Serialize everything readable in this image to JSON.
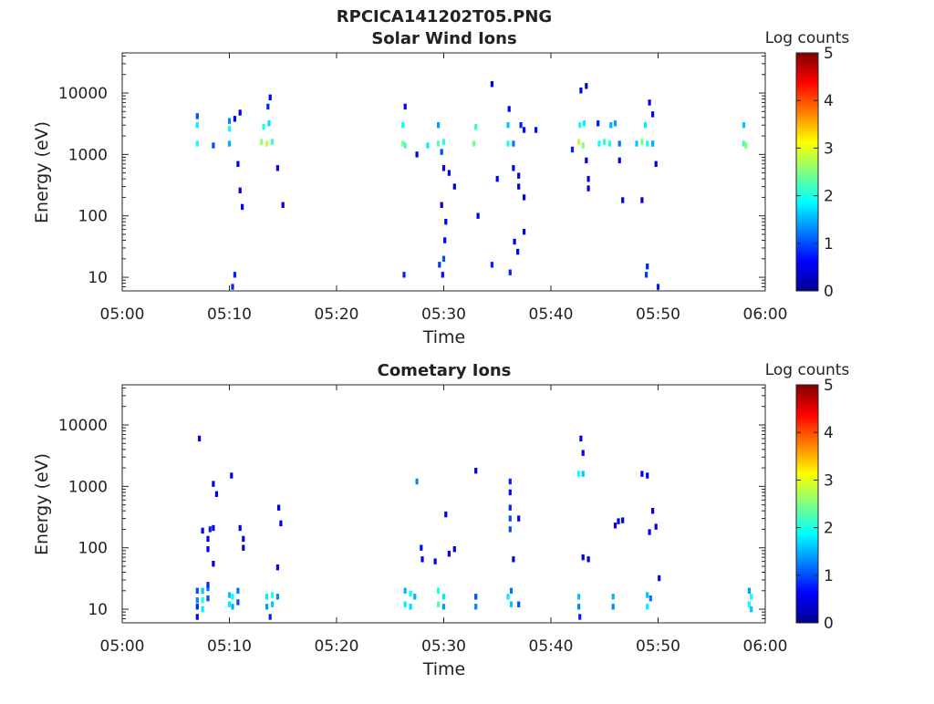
{
  "figure": {
    "title": "RPCICA141202T05.PNG"
  },
  "colorbar": {
    "label": "Log counts",
    "range": [
      0,
      5
    ],
    "ticks": [
      0,
      1,
      2,
      3,
      4,
      5
    ],
    "colormap": "jet"
  },
  "chart_data": [
    {
      "type": "heatmap",
      "title": "Solar Wind Ions",
      "xlabel": "Time",
      "ylabel": "Energy (eV)",
      "xlim": [
        "05:00",
        "06:00"
      ],
      "xticks": [
        "05:00",
        "05:10",
        "05:20",
        "05:30",
        "05:40",
        "05:50",
        "06:00"
      ],
      "ylim": [
        6,
        45000
      ],
      "yscale": "log",
      "yticks": [
        10,
        100,
        1000,
        10000
      ],
      "cells": [
        [
          "05:07",
          1500,
          2.0
        ],
        [
          "05:07",
          3000,
          1.8
        ],
        [
          "05:07",
          4200,
          1.0
        ],
        [
          "05:08.5",
          1400,
          1.0
        ],
        [
          "05:10",
          1500,
          1.5
        ],
        [
          "05:10",
          2600,
          2.0
        ],
        [
          "05:10",
          3500,
          1.3
        ],
        [
          "05:10.5",
          3800,
          0.6
        ],
        [
          "05:11",
          4800,
          0.5
        ],
        [
          "05:10.8",
          700,
          0.6
        ],
        [
          "05:11",
          260,
          0.5
        ],
        [
          "05:11.2",
          140,
          0.5
        ],
        [
          "05:10.5",
          11,
          0.8
        ],
        [
          "05:10.3",
          7,
          0.8
        ],
        [
          "05:13",
          1600,
          2.6
        ],
        [
          "05:13.5",
          1500,
          2.8
        ],
        [
          "05:14",
          1600,
          2.2
        ],
        [
          "05:13.2",
          2800,
          2.0
        ],
        [
          "05:13.7",
          3200,
          1.7
        ],
        [
          "05:13.6",
          6000,
          0.8
        ],
        [
          "05:13.8",
          8500,
          0.6
        ],
        [
          "05:14.5",
          600,
          0.6
        ],
        [
          "05:15",
          150,
          0.5
        ],
        [
          "05:26.2",
          1500,
          2.5
        ],
        [
          "05:26.4",
          1400,
          2.2
        ],
        [
          "05:26.2",
          3000,
          1.9
        ],
        [
          "05:26.4",
          6000,
          0.6
        ],
        [
          "05:26.3",
          11,
          0.8
        ],
        [
          "05:27.5",
          1000,
          0.6
        ],
        [
          "05:28.5",
          1400,
          1.8
        ],
        [
          "05:29.5",
          1500,
          2.3
        ],
        [
          "05:30",
          1600,
          2.0
        ],
        [
          "05:29.5",
          3000,
          1.4
        ],
        [
          "05:29.8",
          1100,
          1.0
        ],
        [
          "05:30",
          600,
          0.6
        ],
        [
          "05:30.5",
          500,
          0.6
        ],
        [
          "05:31",
          300,
          0.5
        ],
        [
          "05:29.8",
          150,
          0.5
        ],
        [
          "05:30.2",
          80,
          0.6
        ],
        [
          "05:30.1",
          40,
          0.6
        ],
        [
          "05:30",
          20,
          1.0
        ],
        [
          "05:29.6",
          16,
          0.9
        ],
        [
          "05:29.9",
          11,
          0.7
        ],
        [
          "05:32.8",
          1500,
          2.4
        ],
        [
          "05:33",
          2800,
          2.1
        ],
        [
          "05:33.2",
          100,
          0.5
        ],
        [
          "05:34.5",
          14000,
          0.5
        ],
        [
          "05:34.5",
          16,
          0.8
        ],
        [
          "05:35",
          400,
          0.6
        ],
        [
          "05:36",
          1500,
          2.0
        ],
        [
          "05:36",
          3000,
          1.6
        ],
        [
          "05:36.1",
          5500,
          0.6
        ],
        [
          "05:36.5",
          1500,
          1.2
        ],
        [
          "05:36.5",
          600,
          0.6
        ],
        [
          "05:37",
          450,
          0.5
        ],
        [
          "05:37",
          300,
          0.5
        ],
        [
          "05:37.5",
          200,
          0.5
        ],
        [
          "05:37.5",
          55,
          0.5
        ],
        [
          "05:36.6",
          38,
          0.5
        ],
        [
          "05:36.9",
          26,
          0.6
        ],
        [
          "05:36.2",
          12,
          0.8
        ],
        [
          "05:37.2",
          3000,
          0.8
        ],
        [
          "05:37.5",
          2500,
          0.7
        ],
        [
          "05:38.6",
          2500,
          0.7
        ],
        [
          "05:42",
          1200,
          0.8
        ],
        [
          "05:42.6",
          1600,
          2.8
        ],
        [
          "05:43",
          1400,
          2.5
        ],
        [
          "05:42.7",
          3000,
          2.0
        ],
        [
          "05:43.1",
          3200,
          1.8
        ],
        [
          "05:42.8",
          11000,
          0.6
        ],
        [
          "05:43.3",
          13000,
          0.5
        ],
        [
          "05:43.3",
          800,
          0.6
        ],
        [
          "05:43.5",
          400,
          0.5
        ],
        [
          "05:43.5",
          280,
          0.5
        ],
        [
          "05:44.4",
          3200,
          0.7
        ],
        [
          "05:44.5",
          1500,
          1.9
        ],
        [
          "05:45",
          1600,
          2.1
        ],
        [
          "05:45.5",
          1500,
          2.0
        ],
        [
          "05:45.6",
          3000,
          1.5
        ],
        [
          "05:46",
          3200,
          1.4
        ],
        [
          "05:46.4",
          1500,
          1.2
        ],
        [
          "05:46.4",
          800,
          0.6
        ],
        [
          "05:46.7",
          180,
          0.5
        ],
        [
          "05:48",
          1500,
          1.6
        ],
        [
          "05:48.5",
          1600,
          2.4
        ],
        [
          "05:49",
          1500,
          2.0
        ],
        [
          "05:48.8",
          3000,
          1.8
        ],
        [
          "05:49.2",
          7000,
          0.6
        ],
        [
          "05:49.5",
          4500,
          0.6
        ],
        [
          "05:49.5",
          1500,
          1.3
        ],
        [
          "05:49.8",
          700,
          0.5
        ],
        [
          "05:48.5",
          180,
          0.5
        ],
        [
          "05:49.5",
          1500,
          1.5
        ],
        [
          "05:49",
          15,
          0.8
        ],
        [
          "05:48.9",
          11,
          0.9
        ],
        [
          "05:50",
          7,
          0.8
        ],
        [
          "05:58",
          1500,
          2.2
        ],
        [
          "05:58.2",
          1400,
          2.5
        ],
        [
          "05:58",
          3000,
          1.6
        ]
      ]
    },
    {
      "type": "heatmap",
      "title": "Cometary Ions",
      "xlabel": "Time",
      "ylabel": "Energy (eV)",
      "xlim": [
        "05:00",
        "06:00"
      ],
      "xticks": [
        "05:00",
        "05:10",
        "05:20",
        "05:30",
        "05:40",
        "05:50",
        "06:00"
      ],
      "ylim": [
        6,
        45000
      ],
      "yscale": "log",
      "yticks": [
        10,
        100,
        1000,
        10000
      ],
      "cells": [
        [
          "05:07",
          20,
          1.0
        ],
        [
          "05:07",
          14,
          1.3
        ],
        [
          "05:07",
          11,
          0.8
        ],
        [
          "05:07",
          7.5,
          0.6
        ],
        [
          "05:07.5",
          20,
          1.6
        ],
        [
          "05:07.5",
          14,
          2.0
        ],
        [
          "05:07.5",
          10,
          1.8
        ],
        [
          "05:08",
          22,
          1.2
        ],
        [
          "05:08",
          15,
          1.0
        ],
        [
          "05:08",
          25,
          0.8
        ],
        [
          "05:07.2",
          6000,
          0.6
        ],
        [
          "05:07.5",
          190,
          0.6
        ],
        [
          "05:08",
          140,
          0.6
        ],
        [
          "05:08.2",
          200,
          0.8
        ],
        [
          "05:08.5",
          210,
          0.6
        ],
        [
          "05:08",
          95,
          0.6
        ],
        [
          "05:08.5",
          1100,
          0.5
        ],
        [
          "05:08.8",
          750,
          0.5
        ],
        [
          "05:08.5",
          55,
          0.5
        ],
        [
          "05:10",
          17,
          1.6
        ],
        [
          "05:10",
          12,
          1.8
        ],
        [
          "05:10.3",
          16,
          1.9
        ],
        [
          "05:10.3",
          11,
          1.5
        ],
        [
          "05:10.8",
          20,
          1.2
        ],
        [
          "05:10.8",
          13,
          1.0
        ],
        [
          "05:10.2",
          1500,
          0.5
        ],
        [
          "05:11",
          210,
          0.5
        ],
        [
          "05:11.3",
          140,
          0.5
        ],
        [
          "05:11.3",
          100,
          0.5
        ],
        [
          "05:13.5",
          16,
          1.8
        ],
        [
          "05:13.5",
          11,
          1.4
        ],
        [
          "05:14",
          17,
          2.0
        ],
        [
          "05:14",
          12,
          1.6
        ],
        [
          "05:14.5",
          16,
          1.3
        ],
        [
          "05:13.8",
          7.5,
          0.8
        ],
        [
          "05:14.6",
          450,
          0.5
        ],
        [
          "05:14.8",
          250,
          0.5
        ],
        [
          "05:14.5",
          48,
          0.6
        ],
        [
          "05:26.4",
          20,
          1.5
        ],
        [
          "05:26.4",
          12,
          1.8
        ],
        [
          "05:26.9",
          18,
          1.9
        ],
        [
          "05:26.9",
          11,
          1.7
        ],
        [
          "05:27.3",
          16,
          1.5
        ],
        [
          "05:27.5",
          1200,
          1.3
        ],
        [
          "05:27.9",
          100,
          0.7
        ],
        [
          "05:28",
          65,
          0.6
        ],
        [
          "05:29.5",
          20,
          2.0
        ],
        [
          "05:29.5",
          12,
          2.2
        ],
        [
          "05:30",
          16,
          1.8
        ],
        [
          "05:30",
          11,
          1.4
        ],
        [
          "05:30.2",
          350,
          0.6
        ],
        [
          "05:30.5",
          80,
          0.6
        ],
        [
          "05:31",
          95,
          0.5
        ],
        [
          "05:29.2",
          60,
          0.5
        ],
        [
          "05:33",
          16,
          1.0
        ],
        [
          "05:33",
          11,
          1.3
        ],
        [
          "05:33",
          1800,
          0.5
        ],
        [
          "05:36",
          16,
          1.8
        ],
        [
          "05:36.3",
          12,
          1.6
        ],
        [
          "05:36.3",
          20,
          1.2
        ],
        [
          "05:36.2",
          1200,
          0.8
        ],
        [
          "05:36.2",
          800,
          0.7
        ],
        [
          "05:36.2",
          450,
          0.8
        ],
        [
          "05:36.2",
          300,
          1.0
        ],
        [
          "05:36.2",
          200,
          1.0
        ],
        [
          "05:37",
          300,
          0.6
        ],
        [
          "05:36.5",
          65,
          0.5
        ],
        [
          "05:37",
          12,
          1.0
        ],
        [
          "05:42.6",
          16,
          1.6
        ],
        [
          "05:42.6",
          11,
          1.3
        ],
        [
          "05:42.7",
          7.5,
          0.8
        ],
        [
          "05:42.6",
          1600,
          1.9
        ],
        [
          "05:43",
          1600,
          1.6
        ],
        [
          "05:42.8",
          6000,
          0.6
        ],
        [
          "05:43",
          3500,
          0.6
        ],
        [
          "05:43",
          70,
          0.5
        ],
        [
          "05:43.5",
          65,
          0.5
        ],
        [
          "05:45.8",
          16,
          1.5
        ],
        [
          "05:45.8",
          11,
          1.3
        ],
        [
          "05:46",
          230,
          0.6
        ],
        [
          "05:46.3",
          270,
          0.5
        ],
        [
          "05:46.7",
          280,
          0.5
        ],
        [
          "05:48.5",
          1600,
          0.6
        ],
        [
          "05:49",
          1500,
          0.5
        ],
        [
          "05:49",
          17,
          1.6
        ],
        [
          "05:49",
          11,
          1.8
        ],
        [
          "05:49.3",
          15,
          1.2
        ],
        [
          "05:49.5",
          400,
          0.5
        ],
        [
          "05:49.2",
          180,
          0.6
        ],
        [
          "05:49.8",
          220,
          0.5
        ],
        [
          "05:50.1",
          32,
          0.6
        ],
        [
          "05:58.5",
          20,
          1.4
        ],
        [
          "05:58.5",
          12,
          1.9
        ],
        [
          "05:58.7",
          16,
          2.0
        ],
        [
          "05:58.7",
          10,
          1.6
        ]
      ]
    }
  ]
}
